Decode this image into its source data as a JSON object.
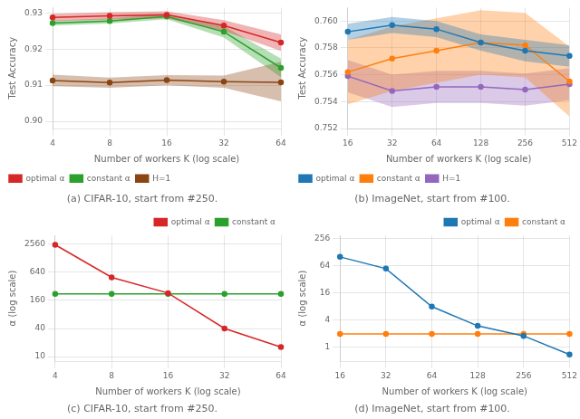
{
  "chart_data": [
    {
      "type": "line",
      "title": "(a) CIFAR-10, start from #250.",
      "xlabel": "Number of workers K (log scale)",
      "ylabel": "Test Accuracy",
      "x": [
        4,
        8,
        16,
        32,
        64
      ],
      "log": "x",
      "xlim": [
        4,
        64
      ],
      "xticks": [
        4,
        8,
        16,
        32,
        64
      ],
      "ylim": [
        0.898,
        0.9315
      ],
      "yticks": [
        {
          "value": 0.9,
          "label": "0.90"
        },
        0.91,
        0.92,
        0.93
      ],
      "grid": true,
      "legend": "lower left",
      "marker": "circle",
      "line_style": "solid",
      "series": [
        {
          "name": "optimal α",
          "color": "#d62728",
          "values": [
            0.9288,
            0.9292,
            0.9295,
            0.9265,
            0.9218
          ],
          "lower": [
            0.9278,
            0.9282,
            0.9285,
            0.925,
            0.9195
          ],
          "upper": [
            0.9298,
            0.9302,
            0.9305,
            0.928,
            0.9241
          ]
        },
        {
          "name": "constant α",
          "color": "#2ca02c",
          "values": [
            0.9272,
            0.9278,
            0.929,
            0.9248,
            0.9148
          ],
          "lower": [
            0.9265,
            0.9271,
            0.9283,
            0.9232,
            0.9122
          ],
          "upper": [
            0.9279,
            0.9285,
            0.9297,
            0.9264,
            0.9174
          ]
        },
        {
          "name": "H=1",
          "color": "#8B4513",
          "values": [
            0.9113,
            0.9107,
            0.9114,
            0.911,
            0.9108
          ],
          "lower": [
            0.9097,
            0.9093,
            0.91,
            0.9093,
            0.9055
          ],
          "upper": [
            0.9129,
            0.9121,
            0.9128,
            0.9127,
            0.9165
          ]
        }
      ]
    },
    {
      "type": "line",
      "title": "(b) ImageNet, start from #100.",
      "xlabel": "Number of workers K (log scale)",
      "ylabel": "Test Accuracy",
      "x": [
        16,
        32,
        64,
        128,
        256,
        512
      ],
      "log": "x",
      "xlim": [
        16,
        512
      ],
      "xticks": [
        16,
        32,
        64,
        128,
        256,
        512
      ],
      "ylim": [
        0.752,
        0.761
      ],
      "yticks": [
        0.752,
        0.754,
        0.756,
        0.758,
        {
          "value": 0.76,
          "label": "0.760"
        }
      ],
      "grid": true,
      "legend": "lower left",
      "marker": "circle",
      "line_style": "solid",
      "series": [
        {
          "name": "optimal α",
          "color": "#1f77b4",
          "values": [
            0.7592,
            0.7597,
            0.7594,
            0.7584,
            0.7578,
            0.7574
          ],
          "lower": [
            0.7586,
            0.7591,
            0.7588,
            0.7578,
            0.757,
            0.7566
          ],
          "upper": [
            0.7598,
            0.7603,
            0.76,
            0.759,
            0.7586,
            0.7582
          ]
        },
        {
          "name": "constant α",
          "color": "#ff7f0e",
          "values": [
            0.7562,
            0.7572,
            0.7578,
            0.7584,
            0.7582,
            0.7555
          ],
          "lower": [
            0.7538,
            0.7548,
            0.7554,
            0.756,
            0.7558,
            0.7529
          ],
          "upper": [
            0.7586,
            0.7596,
            0.7602,
            0.7608,
            0.7606,
            0.7581
          ]
        },
        {
          "name": "H=1",
          "color": "#9467bd",
          "values": [
            0.7559,
            0.7548,
            0.7551,
            0.7551,
            0.7549,
            0.7553
          ],
          "lower": [
            0.7547,
            0.7536,
            0.7539,
            0.7539,
            0.7537,
            0.7541
          ],
          "upper": [
            0.7571,
            0.756,
            0.7563,
            0.7563,
            0.7561,
            0.7565
          ]
        }
      ]
    },
    {
      "type": "line",
      "title": "(c) CIFAR-10, start from #250.",
      "xlabel": "Number of workers K (log scale)",
      "ylabel": "α (log scale)",
      "x": [
        4,
        8,
        16,
        32,
        64
      ],
      "log": true,
      "xlim": [
        4,
        64
      ],
      "xticks": [
        4,
        8,
        16,
        32,
        64
      ],
      "ylim": [
        8,
        4000
      ],
      "yticks": [
        10,
        40,
        160,
        640,
        2560
      ],
      "grid": true,
      "legend": "upper right",
      "marker": "circle",
      "line_style": "solid",
      "series": [
        {
          "name": "optimal α",
          "color": "#d62728",
          "values": [
            2500,
            500,
            230,
            40,
            16
          ]
        },
        {
          "name": "constant α",
          "color": "#2ca02c",
          "values": [
            220,
            220,
            220,
            220,
            220
          ]
        }
      ]
    },
    {
      "type": "line",
      "title": "(d) ImageNet, start from #100.",
      "xlabel": "Number of workers K (log scale)",
      "ylabel": "α (log scale)",
      "x": [
        16,
        32,
        64,
        128,
        256,
        512
      ],
      "log": true,
      "xlim": [
        16,
        512
      ],
      "xticks": [
        16,
        32,
        64,
        128,
        256,
        512
      ],
      "ylim": [
        0.5,
        300
      ],
      "yticks": [
        1,
        4,
        16,
        64,
        256
      ],
      "grid": true,
      "legend": "upper right",
      "marker": "circle",
      "line_style": "solid",
      "series": [
        {
          "name": "optimal α",
          "color": "#1f77b4",
          "values": [
            100,
            55,
            8,
            3,
            1.8,
            0.7
          ]
        },
        {
          "name": "constant α",
          "color": "#ff7f0e",
          "values": [
            2.0,
            2.0,
            2.0,
            2.0,
            2.0,
            2.0
          ]
        }
      ]
    }
  ]
}
